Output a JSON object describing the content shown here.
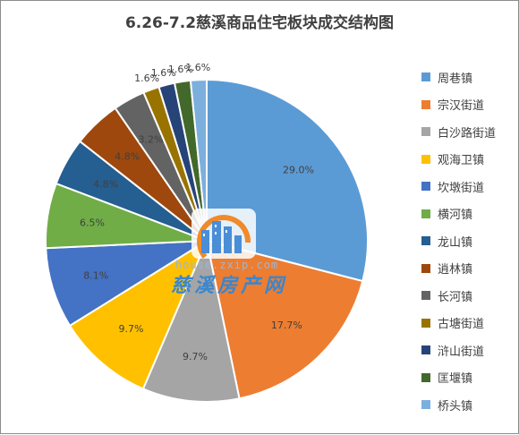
{
  "chart_data": {
    "type": "pie",
    "title": "6.26-7.2慈溪商品住宅板块成交结构图",
    "categories": [
      "周巷镇",
      "宗汉街道",
      "白沙路街道",
      "观海卫镇",
      "坎墩街道",
      "横河镇",
      "龙山镇",
      "逍林镇",
      "长河镇",
      "古塘街道",
      "浒山街道",
      "匡堰镇",
      "桥头镇"
    ],
    "values": [
      29.0,
      17.7,
      9.7,
      9.7,
      8.1,
      6.5,
      4.8,
      4.8,
      3.2,
      1.6,
      1.6,
      1.6,
      1.6
    ],
    "labels": [
      "29.0%",
      "17.7%",
      "9.7%",
      "9.7%",
      "8.1%",
      "6.5%",
      "4.8%",
      "4.8%",
      "3.2%",
      "1.6%",
      "1.6%",
      "1.6%",
      "1.6%"
    ],
    "colors": [
      "#5b9bd5",
      "#ed7d31",
      "#a5a5a5",
      "#ffc000",
      "#4472c4",
      "#70ad47",
      "#255e91",
      "#9e480e",
      "#636363",
      "#997300",
      "#264478",
      "#43682b",
      "#7cafdd"
    ],
    "legend_position": "right"
  },
  "watermark": {
    "url": "house.zxip.com",
    "text": "慈溪房产网"
  }
}
